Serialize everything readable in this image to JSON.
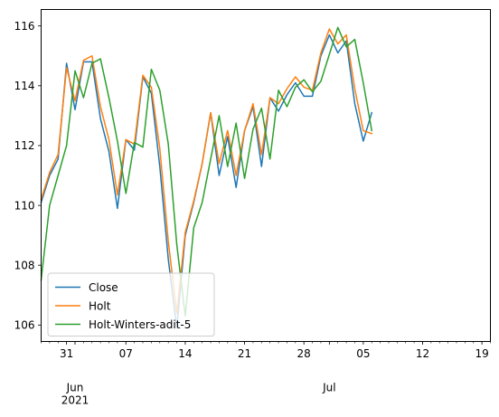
{
  "chart_data": {
    "type": "line",
    "title": "",
    "xlabel": "",
    "ylabel": "",
    "x_range": [
      "2021-05-28",
      "2021-07-20"
    ],
    "ylim": [
      105.45,
      116.55
    ],
    "grid": false,
    "legend_position": "bottom-left",
    "y_ticks": [
      {
        "value": 106,
        "label": "106"
      },
      {
        "value": 108,
        "label": "108"
      },
      {
        "value": 110,
        "label": "110"
      },
      {
        "value": 112,
        "label": "112"
      },
      {
        "value": 114,
        "label": "114"
      },
      {
        "value": 116,
        "label": "116"
      }
    ],
    "x_major_ticks": [
      {
        "date": "2021-05-31",
        "label": "31"
      },
      {
        "date": "2021-06-07",
        "label": "07"
      },
      {
        "date": "2021-06-14",
        "label": "14"
      },
      {
        "date": "2021-06-21",
        "label": "21"
      },
      {
        "date": "2021-06-28",
        "label": "28"
      },
      {
        "date": "2021-07-05",
        "label": "05"
      },
      {
        "date": "2021-07-12",
        "label": "12"
      },
      {
        "date": "2021-07-19",
        "label": "19"
      }
    ],
    "x_month_labels": [
      {
        "date": "2021-06-01",
        "label": "Jun\n2021"
      },
      {
        "date": "2021-07-01",
        "label": "Jul"
      }
    ],
    "series": [
      {
        "name": "Close",
        "color": "#1f77b4",
        "points": [
          [
            "2021-05-28",
            110.1
          ],
          [
            "2021-05-29",
            111.0
          ],
          [
            "2021-05-30",
            111.55
          ],
          [
            "2021-05-31",
            114.75
          ],
          [
            "2021-06-01",
            113.2
          ],
          [
            "2021-06-02",
            114.8
          ],
          [
            "2021-06-03",
            114.8
          ],
          [
            "2021-06-04",
            112.9
          ],
          [
            "2021-06-05",
            111.8
          ],
          [
            "2021-06-06",
            109.9
          ],
          [
            "2021-06-07",
            112.2
          ],
          [
            "2021-06-08",
            111.85
          ],
          [
            "2021-06-09",
            114.3
          ],
          [
            "2021-06-10",
            113.75
          ],
          [
            "2021-06-11",
            111.3
          ],
          [
            "2021-06-12",
            108.2
          ],
          [
            "2021-06-13",
            105.9
          ],
          [
            "2021-06-14",
            109.0
          ],
          [
            "2021-06-15",
            110.1
          ],
          [
            "2021-06-16",
            111.4
          ],
          [
            "2021-06-17",
            113.1
          ],
          [
            "2021-06-18",
            111.0
          ],
          [
            "2021-06-19",
            112.3
          ],
          [
            "2021-06-20",
            110.6
          ],
          [
            "2021-06-21",
            112.5
          ],
          [
            "2021-06-22",
            113.3
          ],
          [
            "2021-06-23",
            111.3
          ],
          [
            "2021-06-24",
            113.6
          ],
          [
            "2021-06-25",
            113.15
          ],
          [
            "2021-06-26",
            113.7
          ],
          [
            "2021-06-27",
            114.1
          ],
          [
            "2021-06-28",
            113.65
          ],
          [
            "2021-06-29",
            113.65
          ],
          [
            "2021-06-30",
            115.0
          ],
          [
            "2021-07-01",
            115.7
          ],
          [
            "2021-07-02",
            115.1
          ],
          [
            "2021-07-03",
            115.5
          ],
          [
            "2021-07-04",
            113.4
          ],
          [
            "2021-07-05",
            112.15
          ],
          [
            "2021-07-06",
            113.1
          ]
        ]
      },
      {
        "name": "Holt",
        "color": "#ff7f0e",
        "points": [
          [
            "2021-05-28",
            110.2
          ],
          [
            "2021-05-29",
            111.1
          ],
          [
            "2021-05-30",
            111.7
          ],
          [
            "2021-05-31",
            114.6
          ],
          [
            "2021-06-01",
            113.5
          ],
          [
            "2021-06-02",
            114.85
          ],
          [
            "2021-06-03",
            115.0
          ],
          [
            "2021-06-04",
            113.3
          ],
          [
            "2021-06-05",
            112.2
          ],
          [
            "2021-06-06",
            110.35
          ],
          [
            "2021-06-07",
            112.2
          ],
          [
            "2021-06-08",
            112.05
          ],
          [
            "2021-06-09",
            114.35
          ],
          [
            "2021-06-10",
            113.95
          ],
          [
            "2021-06-11",
            111.9
          ],
          [
            "2021-06-12",
            108.8
          ],
          [
            "2021-06-13",
            106.4
          ],
          [
            "2021-06-14",
            109.1
          ],
          [
            "2021-06-15",
            110.15
          ],
          [
            "2021-06-16",
            111.4
          ],
          [
            "2021-06-17",
            113.1
          ],
          [
            "2021-06-18",
            111.4
          ],
          [
            "2021-06-19",
            112.5
          ],
          [
            "2021-06-20",
            111.0
          ],
          [
            "2021-06-21",
            112.5
          ],
          [
            "2021-06-22",
            113.4
          ],
          [
            "2021-06-23",
            111.7
          ],
          [
            "2021-06-24",
            113.6
          ],
          [
            "2021-06-25",
            113.4
          ],
          [
            "2021-06-26",
            113.9
          ],
          [
            "2021-06-27",
            114.3
          ],
          [
            "2021-06-28",
            113.95
          ],
          [
            "2021-06-29",
            113.85
          ],
          [
            "2021-06-30",
            115.1
          ],
          [
            "2021-07-01",
            115.9
          ],
          [
            "2021-07-02",
            115.4
          ],
          [
            "2021-07-03",
            115.7
          ],
          [
            "2021-07-04",
            113.9
          ],
          [
            "2021-07-05",
            112.5
          ],
          [
            "2021-07-06",
            112.4
          ]
        ]
      },
      {
        "name": "Holt-Winters-adit-5",
        "color": "#2ca02c",
        "points": [
          [
            "2021-05-28",
            107.5
          ],
          [
            "2021-05-29",
            110.0
          ],
          [
            "2021-05-30",
            111.0
          ],
          [
            "2021-05-31",
            112.0
          ],
          [
            "2021-06-01",
            114.5
          ],
          [
            "2021-06-02",
            113.6
          ],
          [
            "2021-06-03",
            114.75
          ],
          [
            "2021-06-04",
            114.9
          ],
          [
            "2021-06-05",
            113.6
          ],
          [
            "2021-06-06",
            112.15
          ],
          [
            "2021-06-07",
            110.4
          ],
          [
            "2021-06-08",
            112.1
          ],
          [
            "2021-06-09",
            111.95
          ],
          [
            "2021-06-10",
            114.55
          ],
          [
            "2021-06-11",
            113.85
          ],
          [
            "2021-06-12",
            112.05
          ],
          [
            "2021-06-13",
            108.7
          ],
          [
            "2021-06-14",
            106.3
          ],
          [
            "2021-06-15",
            109.25
          ],
          [
            "2021-06-16",
            110.1
          ],
          [
            "2021-06-17",
            111.55
          ],
          [
            "2021-06-18",
            113.0
          ],
          [
            "2021-06-19",
            111.3
          ],
          [
            "2021-06-20",
            112.75
          ],
          [
            "2021-06-21",
            110.9
          ],
          [
            "2021-06-22",
            112.55
          ],
          [
            "2021-06-23",
            113.25
          ],
          [
            "2021-06-24",
            111.55
          ],
          [
            "2021-06-25",
            113.85
          ],
          [
            "2021-06-26",
            113.3
          ],
          [
            "2021-06-27",
            113.95
          ],
          [
            "2021-06-28",
            114.2
          ],
          [
            "2021-06-29",
            113.8
          ],
          [
            "2021-06-30",
            114.15
          ],
          [
            "2021-07-01",
            115.05
          ],
          [
            "2021-07-02",
            115.95
          ],
          [
            "2021-07-03",
            115.3
          ],
          [
            "2021-07-04",
            115.55
          ],
          [
            "2021-07-05",
            114.1
          ],
          [
            "2021-07-06",
            112.5
          ]
        ]
      }
    ]
  }
}
